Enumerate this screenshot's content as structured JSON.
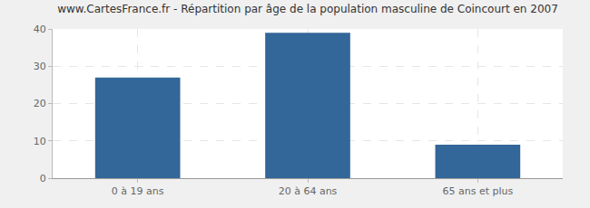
{
  "chart_data": {
    "type": "bar",
    "title": "www.CartesFrance.fr - Répartition par âge de la population masculine de Coincourt en 2007",
    "categories": [
      "0 à 19 ans",
      "20 à 64 ans",
      "65 ans et plus"
    ],
    "values": [
      27,
      39,
      9
    ],
    "color": "#336699",
    "ylim": [
      0,
      40
    ],
    "yticks": [
      0,
      10,
      20,
      30,
      40
    ],
    "grid": true
  }
}
